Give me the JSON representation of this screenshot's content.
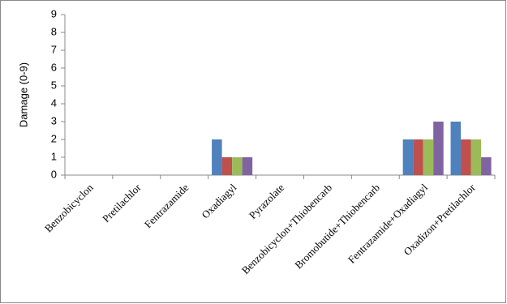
{
  "chart_data": {
    "type": "bar",
    "y_label": "Damage (0-9)",
    "categories": [
      "Benzobicyclon",
      "Pretilachlor",
      "Fentrazamide",
      "Oxadiagyl",
      "Pyrazolate",
      "Benzobicyclon+Thiobencarb",
      "Bromobutide+Thiobencarb",
      "Fentrazamide+Oxadiagyl",
      "Oxadizon+Pretilachlor"
    ],
    "series": [
      {
        "color": "#4f81bd",
        "values": [
          0,
          0,
          0,
          2,
          0,
          0,
          0,
          2,
          3
        ]
      },
      {
        "color": "#c0504d",
        "values": [
          0,
          0,
          0,
          1,
          0,
          0,
          0,
          2,
          2
        ]
      },
      {
        "color": "#9bbb59",
        "values": [
          0,
          0,
          0,
          1,
          0,
          0,
          0,
          2,
          2
        ]
      },
      {
        "color": "#8064a2",
        "values": [
          0,
          0,
          0,
          1,
          0,
          0,
          0,
          3,
          1
        ]
      }
    ],
    "ylim": [
      0,
      9
    ],
    "yticks": [
      0,
      1,
      2,
      3,
      4,
      5,
      6,
      7,
      8,
      9
    ],
    "grid": false
  }
}
